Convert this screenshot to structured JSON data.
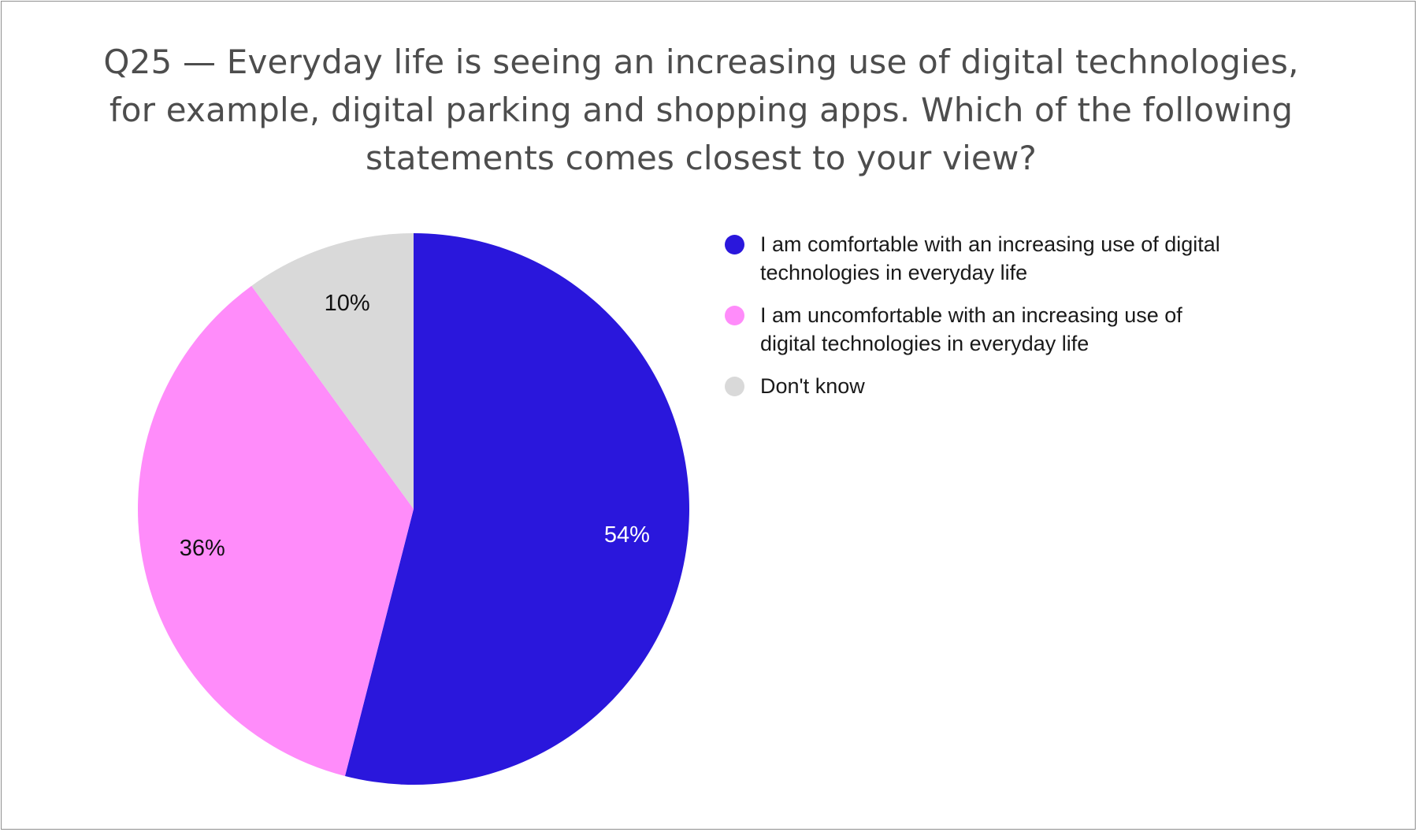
{
  "title_lines": [
    "Q25 — Everyday life is seeing an increasing use of digital technologies,",
    "for example, digital parking and shopping apps. Which of the following",
    "statements comes closest to your view?"
  ],
  "chart_data": {
    "type": "pie",
    "title": "Q25 — Everyday life is seeing an increasing use of digital technologies, for example, digital parking and shopping apps. Which of the following statements comes closest to your view?",
    "legend_position": "right",
    "slices": [
      {
        "name": "I am comfortable with an increasing use of digital technologies in everyday life",
        "legend_lines": [
          "I am comfortable with an increasing use of digital",
          "technologies in everyday life"
        ],
        "value": 54,
        "label": "54%",
        "color": "#2a17dc",
        "label_color": "#ffffff"
      },
      {
        "name": "I am uncomfortable with an increasing use of digital technologies in everyday life",
        "legend_lines": [
          "I am uncomfortable with an increasing use of",
          "digital technologies in everyday life"
        ],
        "value": 36,
        "label": "36%",
        "color": "#ff8cfa",
        "label_color": "#111111"
      },
      {
        "name": "Don't know",
        "legend_lines": [
          "Don't know"
        ],
        "value": 10,
        "label": "10%",
        "color": "#d9d9d9",
        "label_color": "#111111"
      }
    ]
  }
}
